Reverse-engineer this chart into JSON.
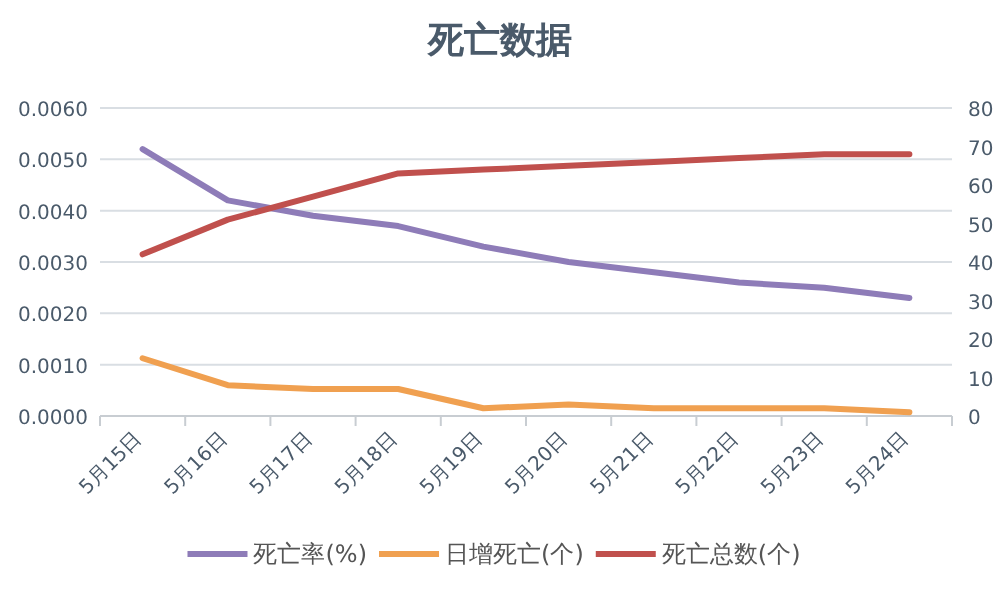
{
  "chart_data": {
    "type": "line",
    "title": "死亡数据",
    "categories": [
      "5月15日",
      "5月16日",
      "5月17日",
      "5月18日",
      "5月19日",
      "5月20日",
      "5月21日",
      "5月22日",
      "5月23日",
      "5月24日"
    ],
    "series": [
      {
        "name": "死亡率(%)",
        "color": "#8e7cb8",
        "values": [
          0.0052,
          0.0042,
          0.0039,
          0.0037,
          0.0033,
          0.003,
          0.0028,
          0.0026,
          0.0025,
          0.0023
        ]
      },
      {
        "name": "日增死亡(个)",
        "color": "#f0a050",
        "axis": "y2",
        "values": [
          15,
          8,
          7,
          7,
          2,
          3,
          2,
          2,
          2,
          1
        ]
      },
      {
        "name": "死亡总数(个)",
        "color": "#c0504d",
        "axis": "y2",
        "values": [
          42,
          51,
          57,
          63,
          64,
          65,
          66,
          67,
          68,
          68
        ]
      }
    ],
    "ylim": [
      0,
      0.006
    ],
    "yticks": [
      {
        "value": 0,
        "label": "0.0000"
      },
      {
        "value": 0.001,
        "label": "0.0010"
      },
      {
        "value": 0.002,
        "label": "0.0020"
      },
      {
        "value": 0.003,
        "label": "0.0030"
      },
      {
        "value": 0.004,
        "label": "0.0040"
      },
      {
        "value": 0.005,
        "label": "0.0050"
      },
      {
        "value": 0.006,
        "label": "0.0060"
      }
    ],
    "y2lim": [
      0,
      80
    ],
    "y2ticks": [
      0,
      10,
      20,
      30,
      40,
      50,
      60,
      70,
      80
    ],
    "grid": "y",
    "legend": "bottom"
  }
}
